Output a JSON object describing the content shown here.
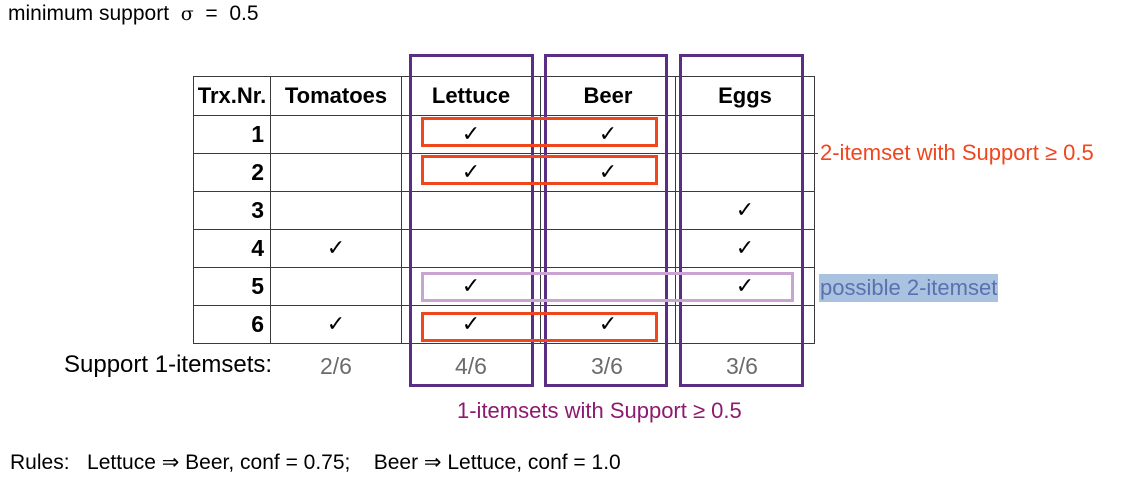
{
  "min_support": {
    "prefix": "minimum support",
    "symbol": "σ",
    "equals": "=",
    "value": "0.5"
  },
  "table": {
    "headers": [
      "Trx.Nr.",
      "Tomatoes",
      "Lettuce",
      "Beer",
      "Eggs"
    ],
    "check_glyph": "✓",
    "rows": [
      {
        "nr": "1",
        "cells": [
          "",
          "✓",
          "✓",
          ""
        ]
      },
      {
        "nr": "2",
        "cells": [
          "",
          "✓",
          "✓",
          ""
        ]
      },
      {
        "nr": "3",
        "cells": [
          "",
          "",
          "",
          "✓"
        ]
      },
      {
        "nr": "4",
        "cells": [
          "✓",
          "",
          "",
          "✓"
        ]
      },
      {
        "nr": "5",
        "cells": [
          "",
          "✓",
          "",
          "✓"
        ]
      },
      {
        "nr": "6",
        "cells": [
          "✓",
          "✓",
          "✓",
          ""
        ]
      }
    ]
  },
  "support": {
    "label": "Support 1-itemsets:",
    "values": [
      "2/6",
      "4/6",
      "3/6",
      "3/6"
    ]
  },
  "annotations": {
    "two_itemset": "2-itemset with Support ≥ 0.5",
    "possible": "possible 2-itemset",
    "one_itemset": "1-itemsets with Support ≥ 0.5"
  },
  "rules": "Rules:   Lettuce ⇒ Beer, conf = 0.75;    Beer ⇒ Lettuce, conf = 1.0",
  "colors": {
    "purple_frame": "#5a2e83",
    "orange_frame": "#f0461e",
    "lilac_frame": "#c9a4d2",
    "purple_text": "#8e1a6f",
    "highlight_bg": "#a9c2df"
  }
}
